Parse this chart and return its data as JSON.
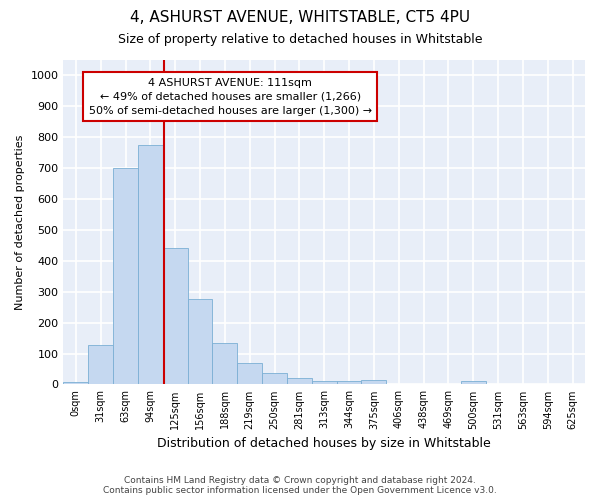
{
  "title": "4, ASHURST AVENUE, WHITSTABLE, CT5 4PU",
  "subtitle": "Size of property relative to detached houses in Whitstable",
  "xlabel": "Distribution of detached houses by size in Whitstable",
  "ylabel": "Number of detached properties",
  "bar_color": "#c5d8f0",
  "bar_edge_color": "#7bafd4",
  "background_color": "#e8eef8",
  "grid_color": "#ffffff",
  "fig_background": "#ffffff",
  "categories": [
    "0sqm",
    "31sqm",
    "63sqm",
    "94sqm",
    "125sqm",
    "156sqm",
    "188sqm",
    "219sqm",
    "250sqm",
    "281sqm",
    "313sqm",
    "344sqm",
    "375sqm",
    "406sqm",
    "438sqm",
    "469sqm",
    "500sqm",
    "531sqm",
    "563sqm",
    "594sqm",
    "625sqm"
  ],
  "values": [
    8,
    128,
    700,
    775,
    440,
    275,
    133,
    68,
    38,
    20,
    10,
    10,
    15,
    0,
    0,
    0,
    10,
    0,
    0,
    0,
    0
  ],
  "ylim": [
    0,
    1050
  ],
  "yticks": [
    0,
    100,
    200,
    300,
    400,
    500,
    600,
    700,
    800,
    900,
    1000
  ],
  "vline_x_index": 3.55,
  "vline_color": "#cc0000",
  "annotation_text": "4 ASHURST AVENUE: 111sqm\n← 49% of detached houses are smaller (1,266)\n50% of semi-detached houses are larger (1,300) →",
  "annotation_box_color": "#ffffff",
  "annotation_box_edge": "#cc0000",
  "footer_line1": "Contains HM Land Registry data © Crown copyright and database right 2024.",
  "footer_line2": "Contains public sector information licensed under the Open Government Licence v3.0."
}
